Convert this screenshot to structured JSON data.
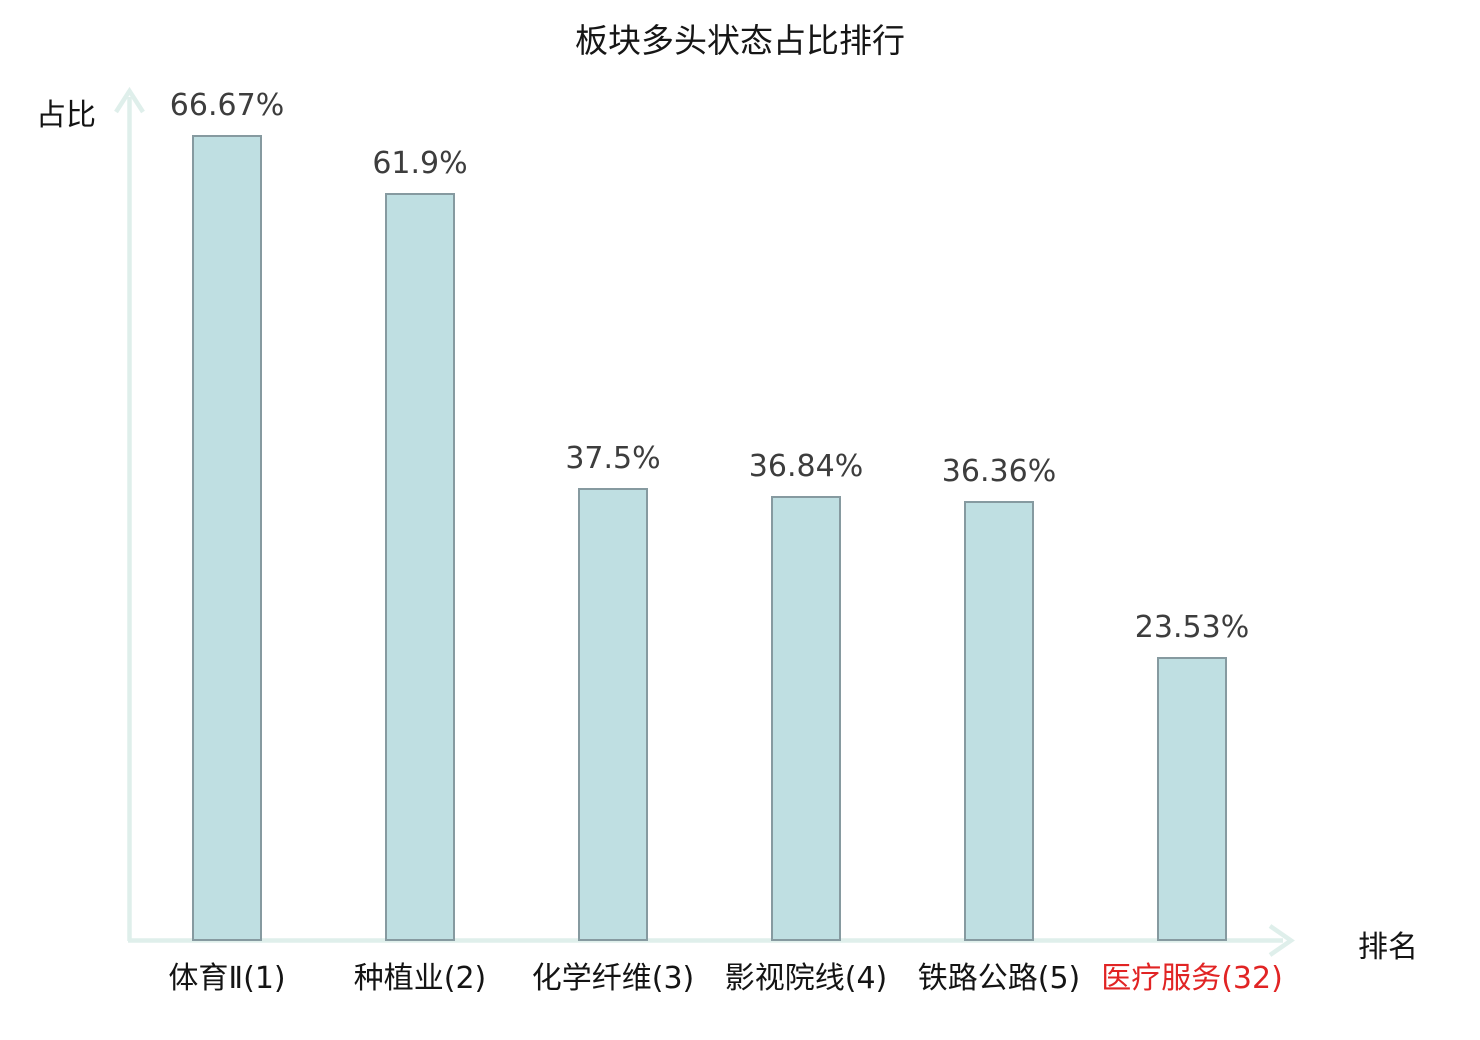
{
  "chart_data": {
    "type": "bar",
    "title": "板块多头状态占比排行",
    "ylabel": "占比",
    "xlabel": "排名",
    "categories": [
      "体育Ⅱ(1)",
      "种植业(2)",
      "化学纤维(3)",
      "影视院线(4)",
      "铁路公路(5)",
      "医疗服务(32)"
    ],
    "values": [
      66.67,
      61.9,
      37.5,
      36.84,
      36.36,
      23.53
    ],
    "value_labels": [
      "66.67%",
      "61.9%",
      "37.5%",
      "36.84%",
      "36.36%",
      "23.53%"
    ],
    "highlight_index": 5,
    "ylim": [
      0,
      70
    ],
    "grid": false,
    "legend": false,
    "colors": {
      "bar_fill": "#bfdfe2",
      "bar_border": "#869aa0",
      "axis": "#dfefeb",
      "value_text": "#3d3d3d",
      "category_text": "#141414",
      "highlight_text": "#e12424",
      "background": "#ffffff"
    }
  }
}
